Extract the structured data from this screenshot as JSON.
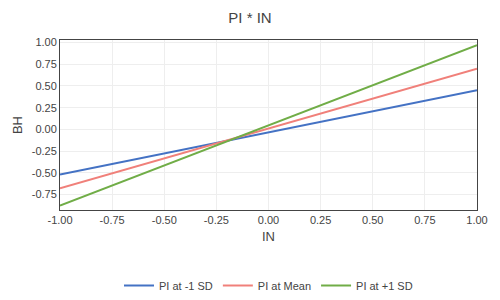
{
  "chart_data": {
    "type": "line",
    "title": "PI * IN",
    "xlabel": "IN",
    "ylabel": "BH",
    "xlim": [
      -1.0,
      1.0
    ],
    "ylim": [
      -0.93,
      1.03
    ],
    "xticks": [
      {
        "value": -1.0,
        "label": "-1.00"
      },
      {
        "value": -0.75,
        "label": "-0.75"
      },
      {
        "value": -0.5,
        "label": "-0.50"
      },
      {
        "value": -0.25,
        "label": "-0.25"
      },
      {
        "value": 0.0,
        "label": "0.00"
      },
      {
        "value": 0.25,
        "label": "0.25"
      },
      {
        "value": 0.5,
        "label": "0.50"
      },
      {
        "value": 0.75,
        "label": "0.75"
      },
      {
        "value": 1.0,
        "label": "1.00"
      }
    ],
    "yticks": [
      {
        "value": -0.75,
        "label": "-0.75"
      },
      {
        "value": -0.5,
        "label": "-0.50"
      },
      {
        "value": -0.25,
        "label": "-0.25"
      },
      {
        "value": 0.0,
        "label": "0.00"
      },
      {
        "value": 0.25,
        "label": "0.25"
      },
      {
        "value": 0.5,
        "label": "0.50"
      },
      {
        "value": 0.75,
        "label": "0.75"
      },
      {
        "value": 1.0,
        "label": "1.00"
      }
    ],
    "grid": true,
    "legend": "bottom",
    "series": [
      {
        "name": "PI at -1 SD",
        "color": "#4472C4",
        "x": [
          -1.0,
          1.0
        ],
        "values": [
          -0.52,
          0.45
        ]
      },
      {
        "name": "PI at Mean",
        "color": "#F0807A",
        "x": [
          -1.0,
          1.0
        ],
        "values": [
          -0.68,
          0.7
        ]
      },
      {
        "name": "PI at +1 SD",
        "color": "#70AD47",
        "x": [
          -1.0,
          1.0
        ],
        "values": [
          -0.88,
          0.97
        ]
      }
    ]
  }
}
